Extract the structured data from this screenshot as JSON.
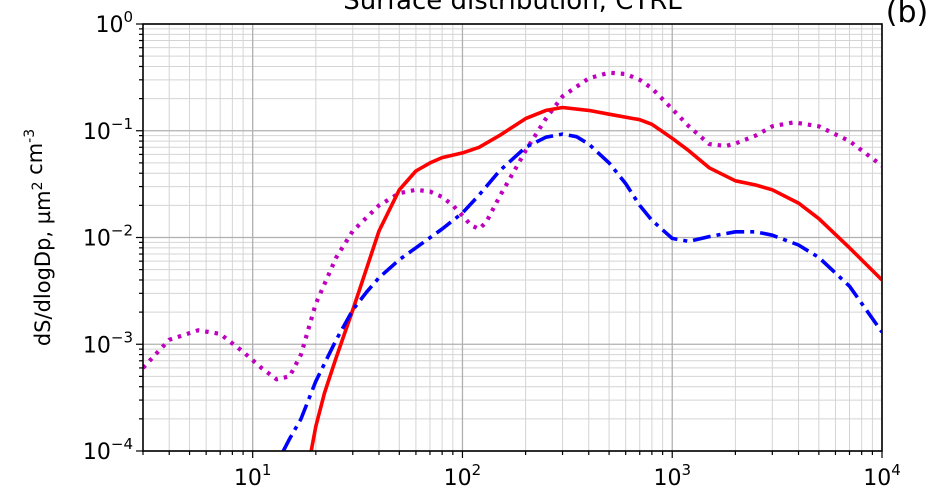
{
  "chart_data": {
    "type": "line",
    "title": "Surface distribution, CTRL",
    "panel_label": "(b)",
    "xlabel": "",
    "ylabel": "dS/dlogDp, µm² cm⁻³",
    "x_scale": "log",
    "y_scale": "log",
    "xlim": [
      3,
      10000
    ],
    "ylim": [
      0.0001,
      1
    ],
    "grid": true,
    "x_ticks": [
      {
        "value": 10,
        "base": "10",
        "exp": "1"
      },
      {
        "value": 100,
        "base": "10",
        "exp": "2"
      },
      {
        "value": 1000,
        "base": "10",
        "exp": "3"
      },
      {
        "value": 10000,
        "base": "10",
        "exp": "4"
      }
    ],
    "y_ticks": [
      {
        "value": 0.0001,
        "base": "10",
        "exp": "−4"
      },
      {
        "value": 0.001,
        "base": "10",
        "exp": "−3"
      },
      {
        "value": 0.01,
        "base": "10",
        "exp": "−2"
      },
      {
        "value": 0.1,
        "base": "10",
        "exp": "−1"
      },
      {
        "value": 1,
        "base": "10",
        "exp": "0"
      }
    ],
    "series": [
      {
        "style": "dotted",
        "color": "#bf00bf",
        "x": [
          3,
          4,
          5.5,
          7,
          9,
          11,
          13,
          15,
          17,
          20,
          25,
          30,
          40,
          50,
          60,
          70,
          80,
          90,
          100,
          110,
          120,
          130,
          150,
          180,
          200,
          250,
          300,
          400,
          500,
          600,
          700,
          800,
          1000,
          1200,
          1500,
          1800,
          2000,
          2500,
          3000,
          3800,
          5000,
          7000,
          10000
        ],
        "y": [
          0.0006,
          0.0011,
          0.00135,
          0.00125,
          0.00085,
          0.0006,
          0.00047,
          0.0005,
          0.0008,
          0.0024,
          0.0065,
          0.0115,
          0.02,
          0.026,
          0.028,
          0.027,
          0.024,
          0.02,
          0.016,
          0.013,
          0.012,
          0.014,
          0.024,
          0.045,
          0.065,
          0.13,
          0.21,
          0.31,
          0.35,
          0.34,
          0.3,
          0.25,
          0.16,
          0.11,
          0.075,
          0.072,
          0.076,
          0.09,
          0.11,
          0.12,
          0.11,
          0.08,
          0.047
        ]
      },
      {
        "style": "solid",
        "color": "#ff0000",
        "x": [
          19,
          20,
          22,
          25,
          30,
          35,
          40,
          50,
          60,
          70,
          80,
          100,
          120,
          150,
          200,
          250,
          300,
          400,
          500,
          700,
          800,
          1000,
          1200,
          1500,
          2000,
          2500,
          3000,
          4000,
          5000,
          7000,
          10000
        ],
        "y": [
          0.0001,
          0.00017,
          0.00035,
          0.00075,
          0.0021,
          0.0052,
          0.0115,
          0.028,
          0.042,
          0.05,
          0.056,
          0.062,
          0.07,
          0.09,
          0.13,
          0.155,
          0.165,
          0.155,
          0.143,
          0.127,
          0.115,
          0.085,
          0.065,
          0.045,
          0.034,
          0.031,
          0.028,
          0.021,
          0.015,
          0.008,
          0.004
        ]
      },
      {
        "style": "dashdot",
        "color": "#0000ff",
        "x": [
          14,
          15,
          17,
          20,
          25,
          30,
          35,
          40,
          50,
          60,
          80,
          100,
          120,
          150,
          200,
          250,
          300,
          350,
          400,
          500,
          600,
          700,
          800,
          1000,
          1200,
          1500,
          2000,
          2500,
          3000,
          4000,
          5000,
          7000,
          10000
        ],
        "y": [
          0.0001,
          0.00013,
          0.0002,
          0.00045,
          0.0011,
          0.0021,
          0.0031,
          0.0042,
          0.0062,
          0.008,
          0.012,
          0.017,
          0.025,
          0.042,
          0.07,
          0.087,
          0.093,
          0.088,
          0.075,
          0.05,
          0.032,
          0.02,
          0.0145,
          0.0098,
          0.0092,
          0.0102,
          0.0113,
          0.0113,
          0.0105,
          0.0085,
          0.0065,
          0.0035,
          0.0013
        ]
      }
    ]
  }
}
